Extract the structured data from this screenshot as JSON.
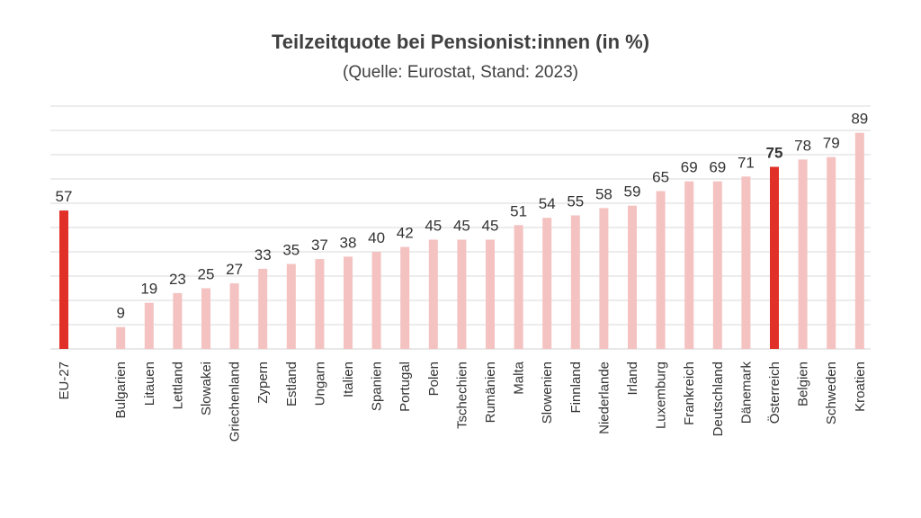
{
  "chart_data": {
    "type": "bar",
    "title": "Teilzeitquote bei Pensionist:innen (in %)",
    "subtitle": "(Quelle: Eurostat, Stand: 2023)",
    "categories": [
      "EU-27",
      "Bulgarien",
      "Litauen",
      "Lettland",
      "Slowakei",
      "Griechenland",
      "Zypern",
      "Estland",
      "Ungarn",
      "Italien",
      "Spanien",
      "Portugal",
      "Polen",
      "Tschechien",
      "Rumänien",
      "Malta",
      "Slowenien",
      "Finnland",
      "Niederlande",
      "Irland",
      "Luxemburg",
      "Frankreich",
      "Deutschland",
      "Dänemark",
      "Österreich",
      "Belgien",
      "Schweden",
      "Kroatien"
    ],
    "values": [
      57,
      9,
      19,
      23,
      25,
      27,
      33,
      35,
      37,
      38,
      40,
      42,
      45,
      45,
      45,
      51,
      54,
      55,
      58,
      59,
      65,
      69,
      69,
      71,
      75,
      78,
      79,
      89
    ],
    "highlighted": [
      "EU-27",
      "Österreich"
    ],
    "bold_value_labels": [
      "Österreich"
    ],
    "ylim": [
      0,
      100
    ],
    "grid": true,
    "xlabel": "",
    "ylabel": "",
    "colors": {
      "highlight": "#e03028",
      "bar": "#f4c2c0",
      "grid": "#d9d9d9",
      "text": "#333333"
    }
  }
}
